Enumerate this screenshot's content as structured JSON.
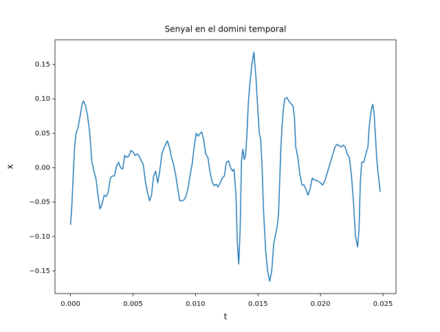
{
  "chart_data": {
    "type": "line",
    "title": "Senyal en el domini temporal",
    "x_label": "t",
    "y_label": "x",
    "x": [
      0,
      0.00011,
      0.00022,
      0.00033,
      0.00044,
      0.0006,
      0.00077,
      0.00093,
      0.00104,
      0.00121,
      0.00137,
      0.00154,
      0.0017,
      0.00187,
      0.00203,
      0.0022,
      0.00236,
      0.00253,
      0.00269,
      0.00286,
      0.00302,
      0.00319,
      0.00335,
      0.00352,
      0.00368,
      0.00385,
      0.00401,
      0.00418,
      0.00434,
      0.00451,
      0.00467,
      0.00484,
      0.005,
      0.00516,
      0.00533,
      0.00549,
      0.00566,
      0.00582,
      0.00599,
      0.00615,
      0.00632,
      0.00648,
      0.00665,
      0.00681,
      0.00698,
      0.00714,
      0.00731,
      0.00747,
      0.00764,
      0.00775,
      0.00791,
      0.00808,
      0.00824,
      0.00841,
      0.00857,
      0.00874,
      0.0089,
      0.00907,
      0.00923,
      0.0094,
      0.00956,
      0.00973,
      0.00989,
      0.01006,
      0.01022,
      0.01039,
      0.0105,
      0.01066,
      0.01082,
      0.01099,
      0.01115,
      0.01132,
      0.01148,
      0.01165,
      0.01181,
      0.01198,
      0.01214,
      0.01231,
      0.01247,
      0.01264,
      0.0128,
      0.01297,
      0.01308,
      0.01324,
      0.01335,
      0.01346,
      0.01357,
      0.01368,
      0.01379,
      0.0139,
      0.01401,
      0.01412,
      0.01423,
      0.01434,
      0.01451,
      0.01467,
      0.01484,
      0.015,
      0.01511,
      0.01522,
      0.01533,
      0.01544,
      0.01561,
      0.01577,
      0.01594,
      0.0161,
      0.01626,
      0.01643,
      0.01654,
      0.01665,
      0.01681,
      0.01692,
      0.01703,
      0.01714,
      0.01731,
      0.01747,
      0.01764,
      0.0178,
      0.01791,
      0.01802,
      0.01819,
      0.01835,
      0.01852,
      0.01868,
      0.01885,
      0.01901,
      0.01918,
      0.01934,
      0.01951,
      0.01967,
      0.01984,
      0.02,
      0.02017,
      0.02033,
      0.0205,
      0.02066,
      0.02083,
      0.02099,
      0.02116,
      0.02132,
      0.02149,
      0.02165,
      0.02182,
      0.02198,
      0.02214,
      0.02231,
      0.02247,
      0.02264,
      0.0228,
      0.02297,
      0.02308,
      0.02319,
      0.0233,
      0.02346,
      0.02363,
      0.02379,
      0.0239,
      0.02407,
      0.02418,
      0.02429,
      0.0244,
      0.02451,
      0.02462,
      0.02478
    ],
    "series": [
      {
        "color": "#1f77b4",
        "values": [
          -0.083,
          -0.055,
          -0.01,
          0.03,
          0.05,
          0.058,
          0.075,
          0.093,
          0.097,
          0.09,
          0.075,
          0.05,
          0.01,
          -0.005,
          -0.015,
          -0.04,
          -0.06,
          -0.052,
          -0.04,
          -0.042,
          -0.035,
          -0.015,
          -0.012,
          -0.012,
          0.002,
          0.008,
          0.0,
          -0.002,
          0.018,
          0.015,
          0.017,
          0.025,
          0.023,
          0.018,
          0.02,
          0.017,
          0.01,
          0.005,
          -0.02,
          -0.035,
          -0.048,
          -0.04,
          -0.012,
          -0.005,
          -0.022,
          -0.005,
          0.02,
          0.028,
          0.035,
          0.039,
          0.03,
          0.015,
          0.005,
          -0.01,
          -0.03,
          -0.048,
          -0.048,
          -0.047,
          -0.042,
          -0.03,
          -0.012,
          0.005,
          0.03,
          0.05,
          0.046,
          0.05,
          0.052,
          0.04,
          0.02,
          0.015,
          -0.005,
          -0.02,
          -0.026,
          -0.024,
          -0.028,
          -0.022,
          -0.015,
          -0.012,
          0.008,
          0.01,
          0.0,
          -0.005,
          -0.002,
          -0.04,
          -0.11,
          -0.14,
          -0.09,
          0.01,
          0.027,
          0.012,
          0.018,
          0.05,
          0.095,
          0.12,
          0.15,
          0.168,
          0.13,
          0.08,
          0.05,
          0.04,
          0.0,
          -0.06,
          -0.12,
          -0.15,
          -0.165,
          -0.15,
          -0.11,
          -0.095,
          -0.085,
          -0.065,
          0.02,
          0.06,
          0.085,
          0.1,
          0.102,
          0.097,
          0.093,
          0.09,
          0.075,
          0.03,
          0.015,
          -0.01,
          -0.025,
          -0.025,
          -0.032,
          -0.04,
          -0.03,
          -0.015,
          -0.018,
          -0.018,
          -0.02,
          -0.022,
          -0.025,
          -0.02,
          -0.01,
          0.0,
          0.01,
          0.02,
          0.03,
          0.034,
          0.032,
          0.03,
          0.033,
          0.03,
          0.02,
          0.015,
          -0.01,
          -0.05,
          -0.1,
          -0.115,
          -0.09,
          -0.02,
          0.008,
          0.008,
          0.02,
          0.03,
          0.06,
          0.085,
          0.092,
          0.08,
          0.045,
          0.01,
          -0.01,
          -0.035
        ]
      }
    ],
    "xlim": [
      -0.00124,
      0.02604
    ],
    "ylim": [
      -0.1829,
      0.1859
    ],
    "xticks": [
      {
        "value": 0,
        "label": "0.000"
      },
      {
        "value": 0.005,
        "label": "0.005"
      },
      {
        "value": 0.01,
        "label": "0.010"
      },
      {
        "value": 0.015,
        "label": "0.015"
      },
      {
        "value": 0.02,
        "label": "0.020"
      },
      {
        "value": 0.025,
        "label": "0.025"
      }
    ],
    "yticks": [
      {
        "value": -0.15,
        "label": "−0.15"
      },
      {
        "value": -0.1,
        "label": "−0.10"
      },
      {
        "value": -0.05,
        "label": "−0.05"
      },
      {
        "value": 0,
        "label": "0.00"
      },
      0.05,
      {
        "value": 0.1,
        "label": "0.10"
      },
      0.15
    ]
  }
}
